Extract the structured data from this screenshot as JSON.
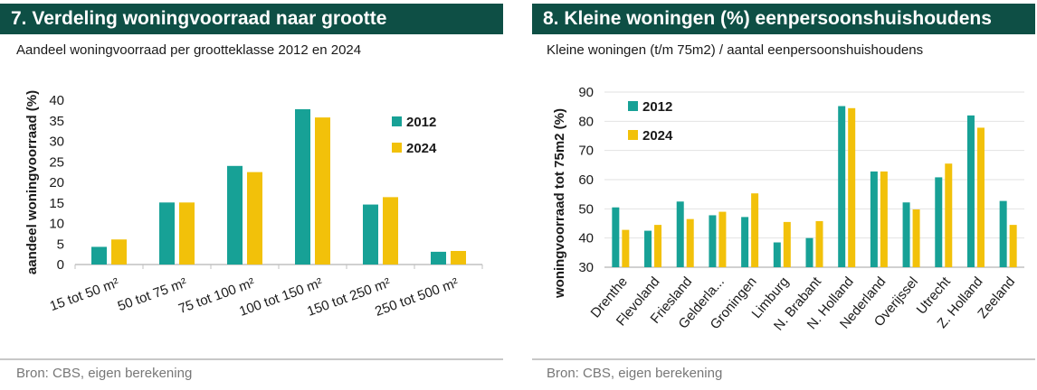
{
  "colors": {
    "series_2012": "#17a196",
    "series_2024": "#f2c10a",
    "title_bg": "#0e4f45",
    "axis": "#c0c0c0"
  },
  "left": {
    "title": "7. Verdeling woningvoorraad naar grootte",
    "subtitle": "Aandeel woningvoorraad per grootteklasse 2012 en 2024",
    "source": "Bron: CBS, eigen berekening"
  },
  "right": {
    "title": "8. Kleine woningen (%) eenpersoonshuishoudens",
    "subtitle": "Kleine woningen (t/m 75m2) / aantal eenpersoonshuishoudens",
    "source": "Bron: CBS, eigen berekening"
  },
  "chart_data": [
    {
      "type": "bar",
      "title": "7. Verdeling woningvoorraad naar grootte",
      "subtitle": "Aandeel woningvoorraad per grootteklasse 2012 en 2024",
      "ylabel": "aandeel woningvoorraad (%)",
      "xlabel": "",
      "categories": [
        "15 tot 50 m²",
        "50 tot 75 m²",
        "75 tot 100 m²",
        "100 tot 150 m²",
        "150 tot 250 m²",
        "250 tot 500 m²"
      ],
      "series": [
        {
          "name": "2012",
          "values": [
            4.3,
            15.1,
            24.0,
            37.8,
            14.6,
            3.1
          ]
        },
        {
          "name": "2024",
          "values": [
            6.1,
            15.1,
            22.5,
            35.8,
            16.4,
            3.3
          ]
        }
      ],
      "ylim": [
        0,
        40
      ],
      "yticks": [
        0,
        5,
        10,
        15,
        20,
        25,
        30,
        35,
        40
      ],
      "grid": false,
      "legend_position": "right"
    },
    {
      "type": "bar",
      "title": "8. Kleine woningen (%) eenpersoonshuishoudens",
      "subtitle": "Kleine woningen (t/m 75m2) / aantal eenpersoonshuishoudens",
      "ylabel": "woningvoorraad tot 75m2 (%)",
      "xlabel": "",
      "categories": [
        "Drenthe",
        "Flevoland",
        "Friesland",
        "Gelderla...",
        "Groningen",
        "Limburg",
        "N. Brabant",
        "N. Holland",
        "Nederland",
        "Overijssel",
        "Utrecht",
        "Z. Holland",
        "Zeeland"
      ],
      "series": [
        {
          "name": "2012",
          "values": [
            50.5,
            42.5,
            52.5,
            47.8,
            47.2,
            38.5,
            40.0,
            85.2,
            62.8,
            52.2,
            60.8,
            82.0,
            52.7
          ]
        },
        {
          "name": "2024",
          "values": [
            42.8,
            44.5,
            46.5,
            49.0,
            55.3,
            45.5,
            45.8,
            84.5,
            62.8,
            49.8,
            65.5,
            77.8,
            44.5
          ]
        }
      ],
      "ylim": [
        30,
        90
      ],
      "yticks": [
        30,
        40,
        50,
        60,
        70,
        80,
        90
      ],
      "grid": true,
      "legend_position": "top-left"
    }
  ]
}
